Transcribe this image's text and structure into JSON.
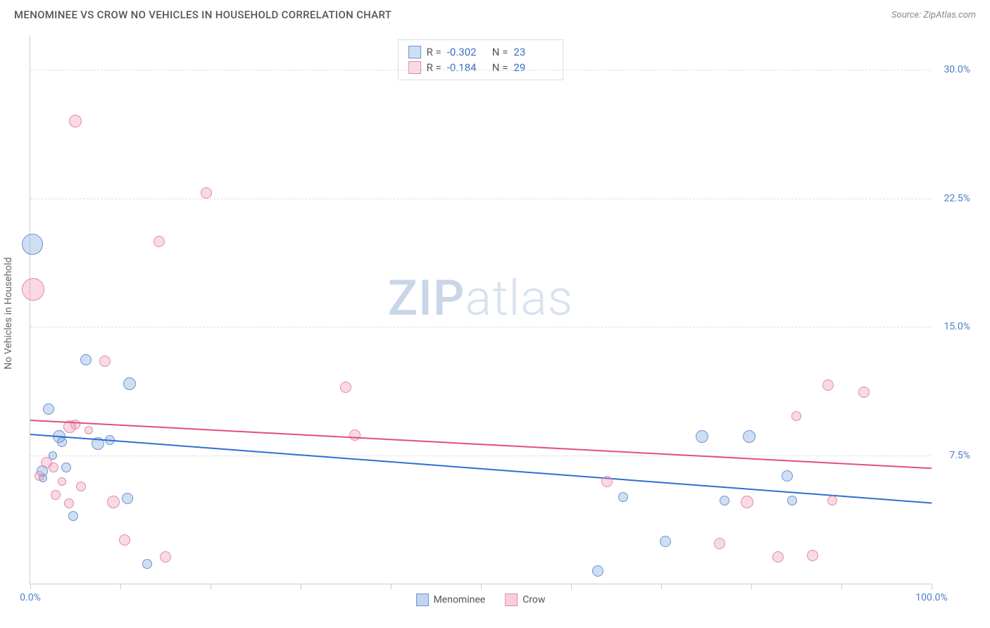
{
  "header": {
    "title": "MENOMINEE VS CROW NO VEHICLES IN HOUSEHOLD CORRELATION CHART",
    "source": "Source: ZipAtlas.com"
  },
  "chart": {
    "type": "scatter",
    "y_axis_label": "No Vehicles in Household",
    "xlim": [
      0,
      100
    ],
    "ylim": [
      0,
      32
    ],
    "y_ticks": [
      7.5,
      15.0,
      22.5,
      30.0
    ],
    "y_tick_labels": [
      "7.5%",
      "15.0%",
      "22.5%",
      "30.0%"
    ],
    "x_ticks": [
      0,
      10,
      20,
      30,
      40,
      50,
      60,
      70,
      80,
      90,
      100
    ],
    "x_tick_labels_shown": {
      "0": "0.0%",
      "100": "100.0%"
    },
    "background_color": "#ffffff",
    "grid_color": "#dddddd",
    "axis_color": "#cccccc",
    "tick_label_color": "#4a7ec9",
    "watermark_text_bold": "ZIP",
    "watermark_text_light": "atlas",
    "series": [
      {
        "name": "Menominee",
        "fill": "rgba(120,160,220,0.35)",
        "stroke": "#6a95d0",
        "trend_color": "#2f6fd0",
        "trend": {
          "x1": 0,
          "y1": 8.8,
          "x2": 100,
          "y2": 4.8
        },
        "stats": {
          "R": "-0.302",
          "N": "23"
        },
        "points": [
          {
            "x": 0.2,
            "y": 19.8,
            "r": 15
          },
          {
            "x": 2.0,
            "y": 10.2,
            "r": 8
          },
          {
            "x": 3.2,
            "y": 8.6,
            "r": 9
          },
          {
            "x": 1.3,
            "y": 6.6,
            "r": 8
          },
          {
            "x": 1.4,
            "y": 6.2,
            "r": 6
          },
          {
            "x": 3.5,
            "y": 8.3,
            "r": 7
          },
          {
            "x": 4.0,
            "y": 6.8,
            "r": 7
          },
          {
            "x": 4.8,
            "y": 4.0,
            "r": 7
          },
          {
            "x": 6.2,
            "y": 13.1,
            "r": 8
          },
          {
            "x": 7.5,
            "y": 8.2,
            "r": 9
          },
          {
            "x": 8.8,
            "y": 8.4,
            "r": 7
          },
          {
            "x": 11.0,
            "y": 11.7,
            "r": 9
          },
          {
            "x": 10.8,
            "y": 5.0,
            "r": 8
          },
          {
            "x": 13.0,
            "y": 1.2,
            "r": 7
          },
          {
            "x": 63.0,
            "y": 0.8,
            "r": 8
          },
          {
            "x": 70.5,
            "y": 2.5,
            "r": 8
          },
          {
            "x": 65.8,
            "y": 5.1,
            "r": 7
          },
          {
            "x": 74.5,
            "y": 8.6,
            "r": 9
          },
          {
            "x": 79.8,
            "y": 8.6,
            "r": 9
          },
          {
            "x": 84.0,
            "y": 6.3,
            "r": 8
          },
          {
            "x": 84.5,
            "y": 4.9,
            "r": 7
          },
          {
            "x": 77.0,
            "y": 4.9,
            "r": 7
          },
          {
            "x": 2.5,
            "y": 7.5,
            "r": 6
          }
        ]
      },
      {
        "name": "Crow",
        "fill": "rgba(235,140,170,0.32)",
        "stroke": "#e08aa8",
        "trend_color": "#e24f7d",
        "trend": {
          "x1": 0,
          "y1": 9.6,
          "x2": 100,
          "y2": 6.8
        },
        "stats": {
          "R": "-0.184",
          "N": "29"
        },
        "points": [
          {
            "x": 0.3,
            "y": 17.2,
            "r": 16
          },
          {
            "x": 5.0,
            "y": 27.0,
            "r": 9
          },
          {
            "x": 19.5,
            "y": 22.8,
            "r": 8
          },
          {
            "x": 14.3,
            "y": 20.0,
            "r": 8
          },
          {
            "x": 8.3,
            "y": 13.0,
            "r": 8
          },
          {
            "x": 4.4,
            "y": 9.2,
            "r": 9
          },
          {
            "x": 5.0,
            "y": 9.3,
            "r": 7
          },
          {
            "x": 1.8,
            "y": 7.1,
            "r": 8
          },
          {
            "x": 2.6,
            "y": 6.8,
            "r": 7
          },
          {
            "x": 1.0,
            "y": 6.3,
            "r": 7
          },
          {
            "x": 2.8,
            "y": 5.2,
            "r": 7
          },
          {
            "x": 4.3,
            "y": 4.7,
            "r": 7
          },
          {
            "x": 5.6,
            "y": 5.7,
            "r": 7
          },
          {
            "x": 9.2,
            "y": 4.8,
            "r": 9
          },
          {
            "x": 10.5,
            "y": 2.6,
            "r": 8
          },
          {
            "x": 15.0,
            "y": 1.6,
            "r": 8
          },
          {
            "x": 35.0,
            "y": 11.5,
            "r": 8
          },
          {
            "x": 36.0,
            "y": 8.7,
            "r": 8
          },
          {
            "x": 64.0,
            "y": 6.0,
            "r": 8
          },
          {
            "x": 76.5,
            "y": 2.4,
            "r": 8
          },
          {
            "x": 79.5,
            "y": 4.8,
            "r": 9
          },
          {
            "x": 83.0,
            "y": 1.6,
            "r": 8
          },
          {
            "x": 85.0,
            "y": 9.8,
            "r": 7
          },
          {
            "x": 86.8,
            "y": 1.7,
            "r": 8
          },
          {
            "x": 88.5,
            "y": 11.6,
            "r": 8
          },
          {
            "x": 92.5,
            "y": 11.2,
            "r": 8
          },
          {
            "x": 89.0,
            "y": 4.9,
            "r": 7
          },
          {
            "x": 3.5,
            "y": 6.0,
            "r": 6
          },
          {
            "x": 6.5,
            "y": 9.0,
            "r": 6
          }
        ]
      }
    ]
  },
  "legend": {
    "items": [
      {
        "label": "Menominee",
        "fill": "rgba(120,160,220,0.45)",
        "stroke": "#6a95d0"
      },
      {
        "label": "Crow",
        "fill": "rgba(235,140,170,0.42)",
        "stroke": "#e08aa8"
      }
    ]
  }
}
